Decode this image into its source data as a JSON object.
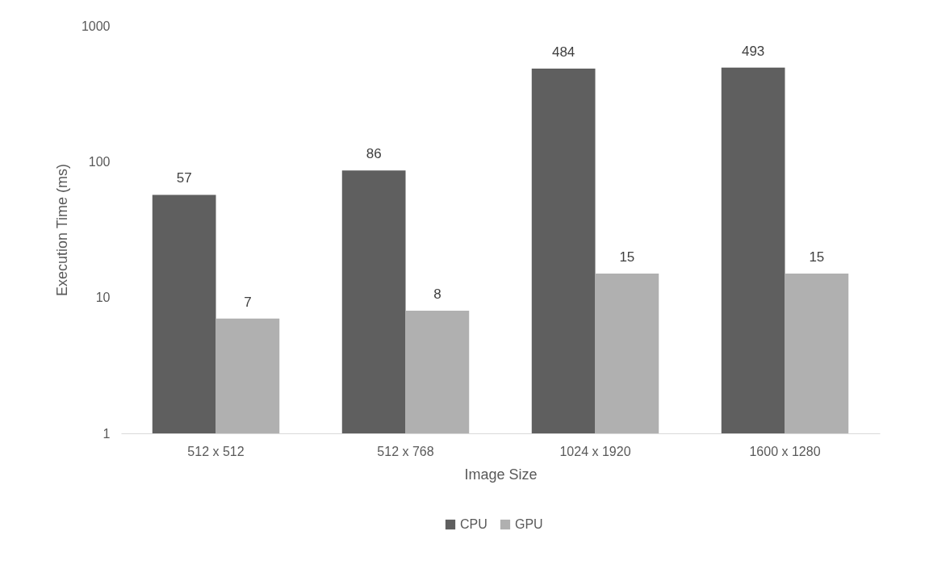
{
  "chart_data": {
    "type": "bar",
    "xlabel": "Image Size",
    "ylabel": "Execution Time (ms)",
    "categories": [
      "512 x 512",
      "512 x 768",
      "1024 x 1920",
      "1600 x 1280"
    ],
    "series": [
      {
        "name": "CPU",
        "color": "#5f5f5f",
        "values": [
          57,
          86,
          484,
          493
        ]
      },
      {
        "name": "GPU",
        "color": "#b0b0b0",
        "values": [
          7,
          8,
          15,
          15
        ]
      }
    ],
    "log": true,
    "ylim": [
      1,
      1000
    ],
    "yticks": [
      1,
      10,
      100,
      1000
    ],
    "grid": false,
    "legend": "bottom",
    "data_labels": true
  }
}
